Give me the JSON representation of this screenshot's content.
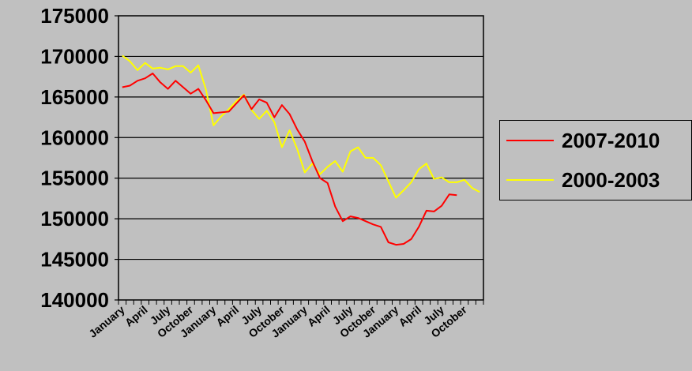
{
  "chart_data": {
    "type": "line",
    "title": "",
    "xlabel": "",
    "ylabel": "",
    "ylim": [
      140000,
      175000
    ],
    "yticks": [
      140000,
      145000,
      150000,
      155000,
      160000,
      165000,
      170000,
      175000
    ],
    "x_tick_labels": [
      "January",
      "April",
      "July",
      "October",
      "January",
      "April",
      "July",
      "October",
      "January",
      "April",
      "July",
      "October",
      "January",
      "April",
      "July",
      "October"
    ],
    "x_tick_positions": [
      0,
      3,
      6,
      9,
      12,
      15,
      18,
      21,
      24,
      27,
      30,
      33,
      36,
      39,
      42,
      45
    ],
    "x_count": 48,
    "grid": true,
    "legend_position": "right",
    "series": [
      {
        "name": "2007-2010",
        "color": "#ff0000",
        "values": [
          166200,
          166400,
          167000,
          167300,
          167900,
          166800,
          166000,
          167000,
          166200,
          165400,
          166000,
          164600,
          163000,
          163100,
          163200,
          164200,
          165200,
          163500,
          164700,
          164300,
          162500,
          164000,
          162900,
          161000,
          159500,
          157100,
          155000,
          154400,
          151500,
          149700,
          150300,
          150100,
          149700,
          149300,
          149000,
          147100,
          146800,
          146900,
          147500,
          149000,
          151000,
          150900,
          151600,
          153000,
          152900
        ]
      },
      {
        "name": "2000-2003",
        "color": "#ffff00",
        "values": [
          170100,
          169400,
          168300,
          169200,
          168500,
          168600,
          168400,
          168800,
          168800,
          168000,
          168900,
          165900,
          161500,
          162600,
          163500,
          164500,
          165300,
          163400,
          162300,
          163300,
          161900,
          158800,
          160900,
          158600,
          155700,
          156800,
          155500,
          156400,
          157100,
          155800,
          158300,
          158800,
          157500,
          157500,
          156600,
          154600,
          152600,
          153500,
          154500,
          156100,
          156800,
          154900,
          155100,
          154500,
          154500,
          154800,
          153800,
          153300
        ]
      }
    ]
  }
}
